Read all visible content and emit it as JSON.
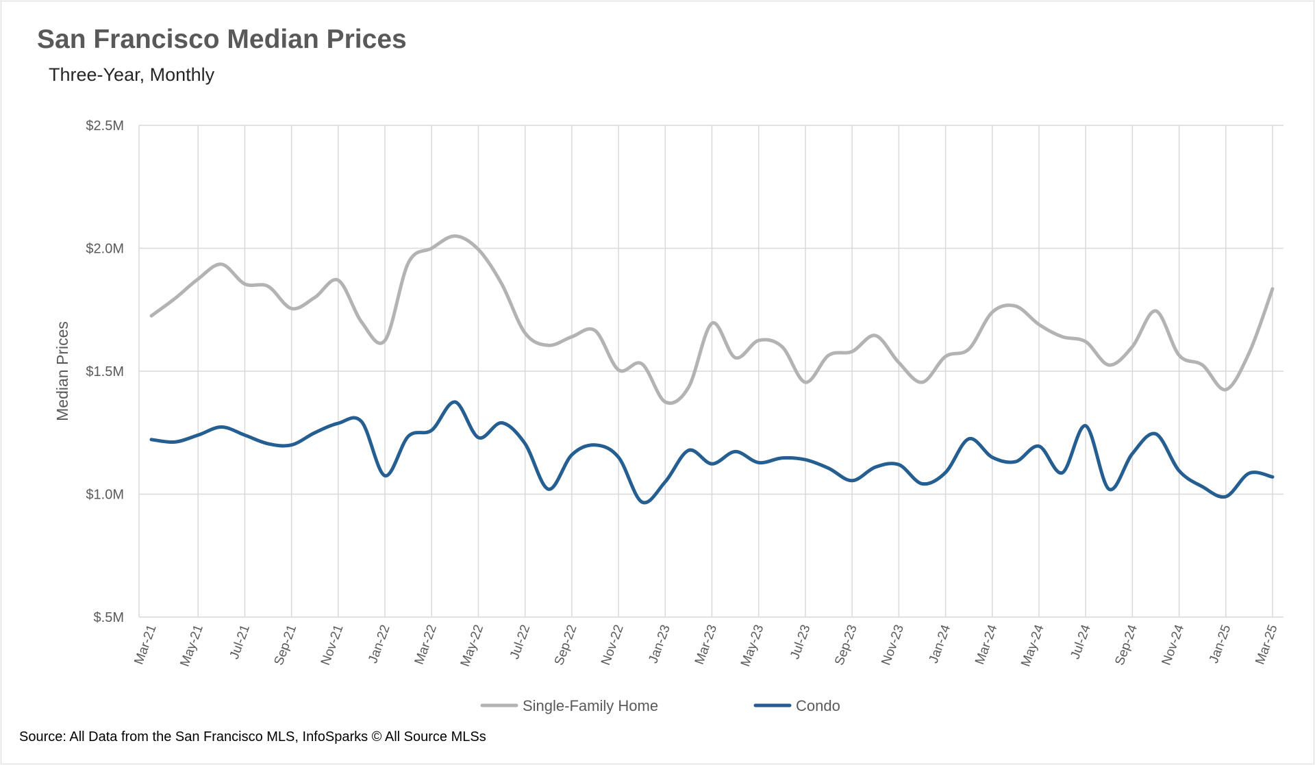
{
  "title": "San Francisco Median Prices",
  "subtitle": "Three-Year, Monthly",
  "source": "Source: All Data from the San Francisco MLS, InfoSparks © All Source MLSs",
  "chart_data": {
    "type": "line",
    "title": "San Francisco Median Prices",
    "subtitle": "Three-Year, Monthly",
    "xlabel": "",
    "ylabel": "Median Prices",
    "ylim": [
      0.5,
      2.5
    ],
    "y_ticks": [
      0.5,
      1.0,
      1.5,
      2.0,
      2.5
    ],
    "y_tick_labels": [
      "$.5M",
      "$1.0M",
      "$1.5M",
      "$2.0M",
      "$2.5M"
    ],
    "grid": true,
    "legend": "bottom",
    "categories": [
      "Mar-21",
      "Apr-21",
      "May-21",
      "Jun-21",
      "Jul-21",
      "Aug-21",
      "Sep-21",
      "Oct-21",
      "Nov-21",
      "Dec-21",
      "Jan-22",
      "Feb-22",
      "Mar-22",
      "Apr-22",
      "May-22",
      "Jun-22",
      "Jul-22",
      "Aug-22",
      "Sep-22",
      "Oct-22",
      "Nov-22",
      "Dec-22",
      "Jan-23",
      "Feb-23",
      "Mar-23",
      "Apr-23",
      "May-23",
      "Jun-23",
      "Jul-23",
      "Aug-23",
      "Sep-23",
      "Oct-23",
      "Nov-23",
      "Dec-23",
      "Jan-24",
      "Feb-24",
      "Mar-24",
      "Apr-24",
      "May-24",
      "Jun-24",
      "Jul-24",
      "Aug-24",
      "Sep-24",
      "Oct-24",
      "Nov-24",
      "Dec-24",
      "Jan-25",
      "Feb-25",
      "Mar-25"
    ],
    "x_tick_labels": [
      "Mar-21",
      "May-21",
      "Jul-21",
      "Sep-21",
      "Nov-21",
      "Jan-22",
      "Mar-22",
      "May-22",
      "Jul-22",
      "Sep-22",
      "Nov-22",
      "Jan-23",
      "Mar-23",
      "May-23",
      "Jul-23",
      "Sep-23",
      "Nov-23",
      "Jan-24",
      "Mar-24",
      "May-24",
      "Jul-24",
      "Sep-24",
      "Nov-24",
      "Jan-25",
      "Mar-25"
    ],
    "series": [
      {
        "name": "Single-Family Home",
        "color": "#b3b3b3",
        "values": [
          1.725,
          1.795,
          1.875,
          1.935,
          1.855,
          1.845,
          1.755,
          1.8,
          1.87,
          1.7,
          1.625,
          1.94,
          2.0,
          2.05,
          1.995,
          1.855,
          1.655,
          1.605,
          1.64,
          1.665,
          1.505,
          1.53,
          1.375,
          1.435,
          1.695,
          1.555,
          1.625,
          1.6,
          1.455,
          1.565,
          1.58,
          1.645,
          1.535,
          1.455,
          1.56,
          1.59,
          1.74,
          1.765,
          1.69,
          1.64,
          1.62,
          1.525,
          1.6,
          1.745,
          1.565,
          1.525,
          1.425,
          1.575,
          1.835
        ]
      },
      {
        "name": "Condo",
        "color": "#255e91",
        "values": [
          1.222,
          1.212,
          1.24,
          1.273,
          1.24,
          1.205,
          1.2,
          1.25,
          1.288,
          1.295,
          1.075,
          1.235,
          1.26,
          1.375,
          1.23,
          1.29,
          1.205,
          1.02,
          1.16,
          1.2,
          1.15,
          0.968,
          1.05,
          1.178,
          1.123,
          1.173,
          1.128,
          1.147,
          1.14,
          1.105,
          1.055,
          1.11,
          1.12,
          1.042,
          1.088,
          1.225,
          1.15,
          1.132,
          1.195,
          1.087,
          1.278,
          1.02,
          1.165,
          1.245,
          1.095,
          1.03,
          0.99,
          1.085,
          1.07
        ]
      }
    ]
  }
}
